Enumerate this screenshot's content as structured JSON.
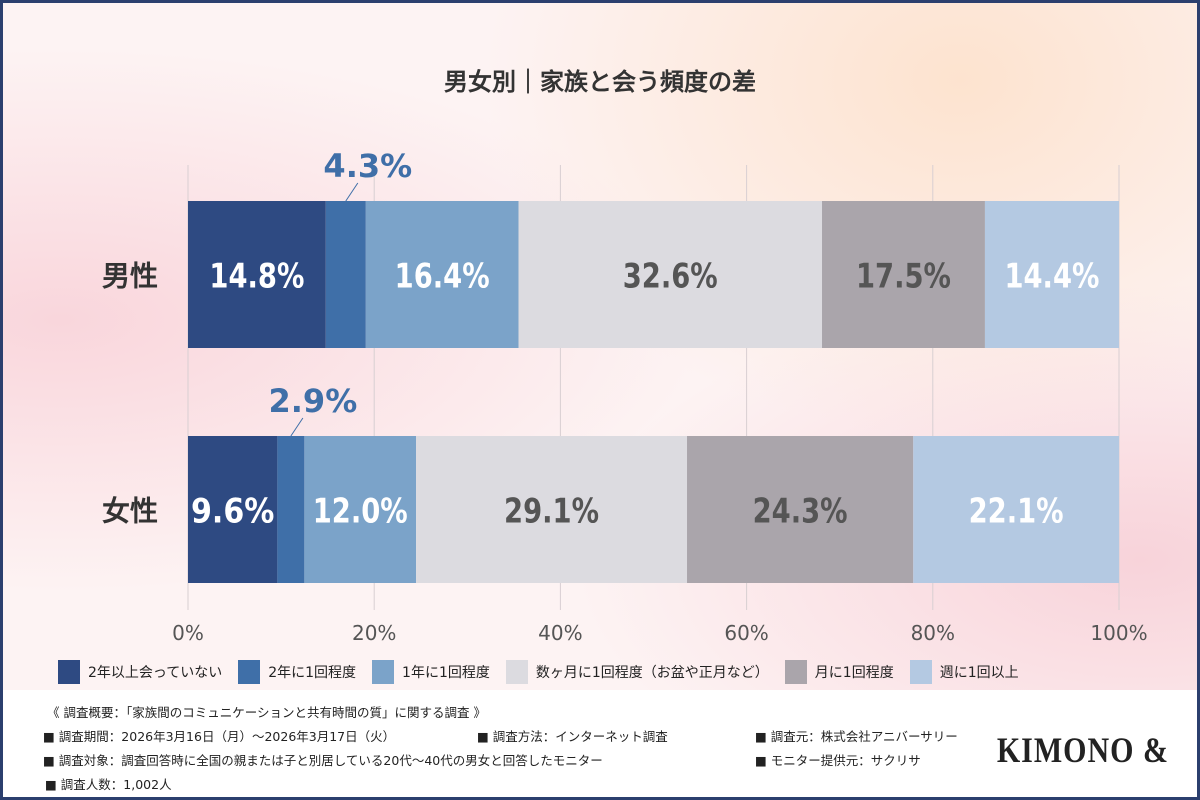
{
  "chart_data": {
    "type": "bar",
    "orientation": "horizontal",
    "stacked": true,
    "title": "男女別｜家族と会う頻度の差",
    "categories": [
      "男性",
      "女性"
    ],
    "xlim": [
      0,
      100
    ],
    "xticks": [
      "0%",
      "20%",
      "40%",
      "60%",
      "80%",
      "100%"
    ],
    "grid": true,
    "legend_position": "bottom",
    "series": [
      {
        "name": "2年以上会っていない",
        "color": "#2e4a82",
        "label_color": "#ffffff",
        "values": [
          14.8,
          9.6
        ],
        "labels": [
          "14.8%",
          "9.6%"
        ]
      },
      {
        "name": "2年に1回程度",
        "color": "#3f6fa8",
        "label_color": "#3f6fa8",
        "values": [
          4.3,
          2.9
        ],
        "labels": [
          "4.3%",
          "2.9%"
        ],
        "callout": true
      },
      {
        "name": "1年に1回程度",
        "color": "#7ba3c9",
        "label_color": "#ffffff",
        "values": [
          16.4,
          12.0
        ],
        "labels": [
          "16.4%",
          "12.0%"
        ]
      },
      {
        "name": "数ヶ月に1回程度（お盆や正月など）",
        "color": "#dcdbe0",
        "label_color": "#555555",
        "values": [
          32.6,
          29.1
        ],
        "labels": [
          "32.6%",
          "29.1%"
        ]
      },
      {
        "name": "月に1回程度",
        "color": "#aaa5ab",
        "label_color": "#555555",
        "values": [
          17.5,
          24.3
        ],
        "labels": [
          "17.5%",
          "24.3%"
        ]
      },
      {
        "name": "週に1回以上",
        "color": "#b4c9e2",
        "label_color": "#ffffff",
        "values": [
          14.4,
          22.1
        ],
        "labels": [
          "14.4%",
          "22.1%"
        ]
      }
    ]
  },
  "footer": {
    "summary": "《 調査概要：「家族間のコミュニケーションと共有時間の質」に関する調査 》",
    "period": "■ 調査期間：2026年3月16日（月）～2026年3月17日（火）",
    "method": "■ 調査方法：インターネット調査",
    "source": "■ 調査元：株式会社アニバーサリー",
    "target": "■ 調査対象：調査回答時に全国の親または子と別居している20代～40代の男女と回答したモニター",
    "provider": "■ モニター提供元：サクリサ",
    "count": "■ 調査人数：1,002人",
    "logo": "KIMONO &"
  }
}
